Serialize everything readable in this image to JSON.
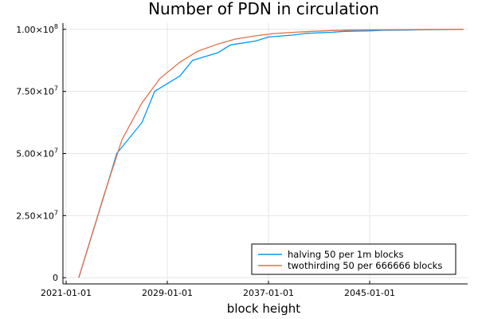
{
  "chart_data": {
    "type": "line",
    "title": "Number of PDN in circulation",
    "xlabel": "block height",
    "ylabel": "",
    "x_type": "date",
    "xlim": [
      "2020-10-01",
      "2052-10-01"
    ],
    "ylim": [
      -2500000,
      102500000
    ],
    "x_ticks": [
      "2021-01-01",
      "2029-01-01",
      "2037-01-01",
      "2045-01-01"
    ],
    "x_tick_labels": [
      "2021-01-01",
      "2029-01-01",
      "2037-01-01",
      "2045-01-01"
    ],
    "y_ticks": [
      0,
      25000000,
      50000000,
      75000000,
      100000000
    ],
    "y_tick_labels": [
      {
        "mantissa": "0",
        "exp": ""
      },
      {
        "mantissa": "2.50×10",
        "exp": "7"
      },
      {
        "mantissa": "5.00×10",
        "exp": "7"
      },
      {
        "mantissa": "7.50×10",
        "exp": "7"
      },
      {
        "mantissa": "1.00×10",
        "exp": "8"
      }
    ],
    "grid": true,
    "legend_position": "bottom-right",
    "series": [
      {
        "name": "halving 50 per 1m blocks",
        "color": "#009AFA",
        "x": [
          "2022-01-01",
          "2024-01-01",
          "2025-01-01",
          "2027-01-01",
          "2028-01-01",
          "2030-01-01",
          "2031-01-01",
          "2033-01-01",
          "2034-01-01",
          "2036-01-01",
          "2037-01-01",
          "2039-01-01",
          "2040-01-01",
          "2042-01-01",
          "2043-01-01",
          "2045-01-01",
          "2046-01-01",
          "2048-01-01",
          "2049-01-01",
          "2051-01-01",
          "2052-06-01"
        ],
        "y": [
          0,
          33000000,
          50000000,
          62500000,
          75000000,
          81250000,
          87500000,
          90600000,
          93750000,
          95300000,
          96900000,
          97700000,
          98400000,
          98800000,
          99200000,
          99400000,
          99600000,
          99700000,
          99800000,
          99900000,
          100000000
        ]
      },
      {
        "name": "twothirding 50 per 666666 blocks",
        "color": "#E26F46",
        "x": [
          "2022-01-01",
          "2024-01-01",
          "2025-06-01",
          "2027-01-01",
          "2028-06-01",
          "2030-01-01",
          "2031-06-01",
          "2033-01-01",
          "2034-06-01",
          "2036-01-01",
          "2037-06-01",
          "2039-01-01",
          "2040-06-01",
          "2042-01-01",
          "2043-06-01",
          "2045-01-01",
          "2046-06-01",
          "2048-01-01",
          "2049-06-01",
          "2051-01-01",
          "2052-06-01"
        ],
        "y": [
          0,
          33300000,
          55600000,
          70400000,
          80200000,
          86800000,
          91200000,
          94100000,
          96100000,
          97400000,
          98300000,
          98800000,
          99200000,
          99500000,
          99700000,
          99800000,
          99850000,
          99900000,
          99930000,
          99960000,
          100000000
        ]
      }
    ]
  }
}
